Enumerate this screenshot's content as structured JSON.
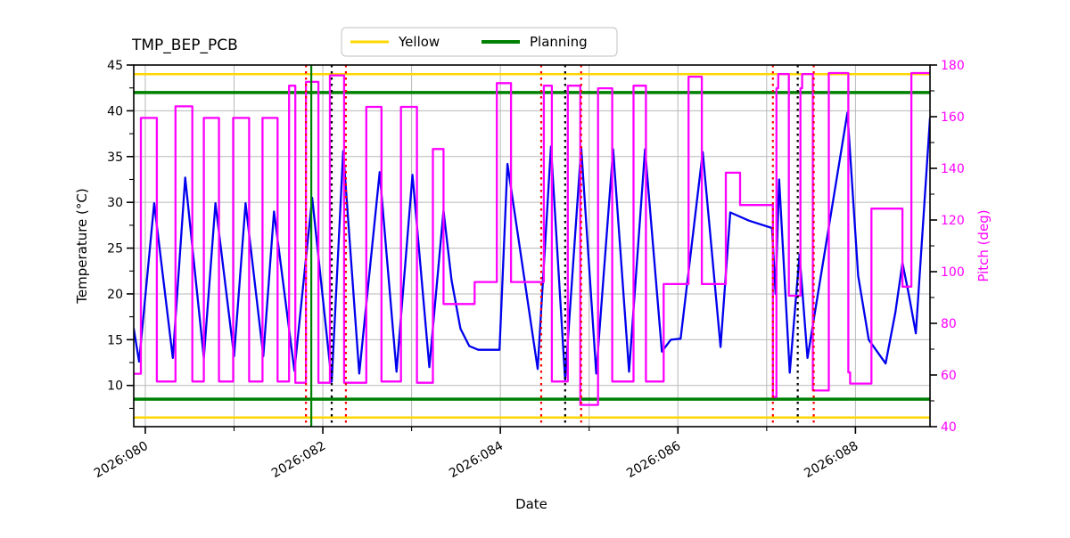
{
  "chart_data": {
    "type": "line",
    "title": "TMP_BEP_PCB",
    "xlabel": "Date",
    "ylabel": "Temperature (°C)",
    "y2label": "Pitch (deg)",
    "x_axis": {
      "xlim": [
        79.87,
        88.84
      ],
      "major_ticks": [
        80,
        82,
        84,
        86,
        88
      ],
      "major_labels": [
        "2026:080",
        "2026:082",
        "2026:084",
        "2026:086",
        "2026:088"
      ],
      "minor_ticks": [
        81,
        83,
        85,
        87
      ],
      "grid_days": [
        80,
        81,
        82,
        83,
        84,
        85,
        86,
        87,
        88
      ],
      "label_rotation_deg": 30
    },
    "y_left": {
      "lim": [
        5.5,
        45
      ],
      "ticks": [
        10,
        15,
        20,
        25,
        30,
        35,
        40,
        45
      ],
      "minor_ticks": [
        7.5,
        12.5,
        17.5,
        22.5,
        27.5,
        32.5,
        37.5,
        42.5
      ],
      "color": "#000000"
    },
    "y_right": {
      "lim": [
        40,
        180
      ],
      "ticks": [
        40,
        60,
        80,
        100,
        120,
        140,
        160,
        180
      ],
      "minor_ticks": [
        50,
        70,
        90,
        110,
        130,
        150,
        170
      ],
      "color": "#ff00ff"
    },
    "grid": true,
    "grid_color": "#b8b8b8",
    "legend": {
      "position": "top-center",
      "entries": [
        {
          "label": "Yellow",
          "color": "#ffd700"
        },
        {
          "label": "Planning",
          "color": "#008000"
        }
      ]
    },
    "series": [
      {
        "name": "temperature",
        "axis": "left",
        "color": "#0000ee",
        "points": [
          [
            79.87,
            16.2
          ],
          [
            79.93,
            12.6
          ],
          [
            80.1,
            29.9
          ],
          [
            80.31,
            13.0
          ],
          [
            80.45,
            32.7
          ],
          [
            80.66,
            13.0
          ],
          [
            80.79,
            29.9
          ],
          [
            81.0,
            13.2
          ],
          [
            81.13,
            29.9
          ],
          [
            81.33,
            13.2
          ],
          [
            81.45,
            29.0
          ],
          [
            81.68,
            11.6
          ],
          [
            81.88,
            30.5
          ],
          [
            82.1,
            10.4
          ],
          [
            82.23,
            35.6
          ],
          [
            82.41,
            11.3
          ],
          [
            82.64,
            33.3
          ],
          [
            82.83,
            11.5
          ],
          [
            83.01,
            33.0
          ],
          [
            83.2,
            12.0
          ],
          [
            83.36,
            29.1
          ],
          [
            83.45,
            21.5
          ],
          [
            83.55,
            16.2
          ],
          [
            83.65,
            14.3
          ],
          [
            83.75,
            13.9
          ],
          [
            83.99,
            13.9
          ],
          [
            84.08,
            34.2
          ],
          [
            84.42,
            11.8
          ],
          [
            84.57,
            36.1
          ],
          [
            84.73,
            10.6
          ],
          [
            84.91,
            36.0
          ],
          [
            85.08,
            11.3
          ],
          [
            85.27,
            35.8
          ],
          [
            85.45,
            11.5
          ],
          [
            85.63,
            35.8
          ],
          [
            85.82,
            13.7
          ],
          [
            85.92,
            15.0
          ],
          [
            86.03,
            15.1
          ],
          [
            86.28,
            35.5
          ],
          [
            86.48,
            14.2
          ],
          [
            86.59,
            28.9
          ],
          [
            86.8,
            28.0
          ],
          [
            87.06,
            27.2
          ],
          [
            87.1,
            20.0
          ],
          [
            87.14,
            32.5
          ],
          [
            87.26,
            11.4
          ],
          [
            87.37,
            24.3
          ],
          [
            87.46,
            13.0
          ],
          [
            87.91,
            39.8
          ],
          [
            88.03,
            22.0
          ],
          [
            88.15,
            15.0
          ],
          [
            88.34,
            12.4
          ],
          [
            88.45,
            18.0
          ],
          [
            88.53,
            23.4
          ],
          [
            88.6,
            20.0
          ],
          [
            88.68,
            15.7
          ],
          [
            88.84,
            39.2
          ]
        ]
      },
      {
        "name": "pitch",
        "axis": "right",
        "color": "#ff00ff",
        "points": [
          [
            79.87,
            60.5
          ],
          [
            79.95,
            60.5
          ],
          [
            79.95,
            159.5
          ],
          [
            80.13,
            159.5
          ],
          [
            80.13,
            57.5
          ],
          [
            80.34,
            57.5
          ],
          [
            80.34,
            164
          ],
          [
            80.53,
            164
          ],
          [
            80.53,
            57.5
          ],
          [
            80.66,
            57.5
          ],
          [
            80.66,
            159.5
          ],
          [
            80.83,
            159.5
          ],
          [
            80.83,
            57.5
          ],
          [
            80.99,
            57.5
          ],
          [
            80.99,
            159.5
          ],
          [
            81.17,
            159.5
          ],
          [
            81.17,
            57.5
          ],
          [
            81.32,
            57.5
          ],
          [
            81.32,
            159.5
          ],
          [
            81.49,
            159.5
          ],
          [
            81.49,
            57.5
          ],
          [
            81.62,
            57.5
          ],
          [
            81.62,
            172
          ],
          [
            81.69,
            172
          ],
          [
            81.69,
            57
          ],
          [
            81.81,
            57
          ],
          [
            81.81,
            173.5
          ],
          [
            81.95,
            173.5
          ],
          [
            81.95,
            57
          ],
          [
            82.08,
            57
          ],
          [
            82.08,
            176
          ],
          [
            82.24,
            176
          ],
          [
            82.24,
            57
          ],
          [
            82.49,
            57
          ],
          [
            82.49,
            163.8
          ],
          [
            82.66,
            163.8
          ],
          [
            82.66,
            57.5
          ],
          [
            82.88,
            57.5
          ],
          [
            82.88,
            163.8
          ],
          [
            83.06,
            163.8
          ],
          [
            83.06,
            57
          ],
          [
            83.24,
            57
          ],
          [
            83.24,
            147.5
          ],
          [
            83.36,
            147.5
          ],
          [
            83.36,
            87.5
          ],
          [
            83.71,
            87.5
          ],
          [
            83.71,
            96
          ],
          [
            83.96,
            96
          ],
          [
            83.96,
            173
          ],
          [
            84.12,
            173
          ],
          [
            84.12,
            96
          ],
          [
            84.49,
            96
          ],
          [
            84.49,
            172
          ],
          [
            84.58,
            172
          ],
          [
            84.58,
            57.5
          ],
          [
            84.76,
            57.5
          ],
          [
            84.76,
            172
          ],
          [
            84.9,
            172
          ],
          [
            84.9,
            48.4
          ],
          [
            85.1,
            48.4
          ],
          [
            85.1,
            171
          ],
          [
            85.26,
            171
          ],
          [
            85.26,
            57.5
          ],
          [
            85.5,
            57.5
          ],
          [
            85.5,
            172
          ],
          [
            85.64,
            172
          ],
          [
            85.64,
            57.5
          ],
          [
            85.84,
            57.5
          ],
          [
            85.84,
            95.2
          ],
          [
            86.12,
            95.2
          ],
          [
            86.12,
            175.5
          ],
          [
            86.27,
            175.5
          ],
          [
            86.27,
            95.2
          ],
          [
            86.54,
            95.2
          ],
          [
            86.54,
            138.3
          ],
          [
            86.7,
            138.3
          ],
          [
            86.7,
            125.8
          ],
          [
            87.07,
            125.8
          ],
          [
            87.07,
            51.5
          ],
          [
            87.11,
            51.5
          ],
          [
            87.11,
            171
          ],
          [
            87.13,
            171
          ],
          [
            87.13,
            176.5
          ],
          [
            87.25,
            176.5
          ],
          [
            87.25,
            90.7
          ],
          [
            87.38,
            90.7
          ],
          [
            87.38,
            171
          ],
          [
            87.4,
            171
          ],
          [
            87.4,
            176.5
          ],
          [
            87.52,
            176.5
          ],
          [
            87.52,
            54
          ],
          [
            87.7,
            54
          ],
          [
            87.7,
            176.9
          ],
          [
            87.92,
            176.9
          ],
          [
            87.92,
            61
          ],
          [
            87.94,
            61
          ],
          [
            87.94,
            56.7
          ],
          [
            88.18,
            56.7
          ],
          [
            88.18,
            124.4
          ],
          [
            88.53,
            124.4
          ],
          [
            88.53,
            94.2
          ],
          [
            88.63,
            94.2
          ],
          [
            88.63,
            176.9
          ],
          [
            88.84,
            176.9
          ]
        ]
      }
    ],
    "reference_lines": {
      "horizontal": [
        {
          "name": "yellow-high",
          "value": 44.0,
          "color": "#ffd700",
          "style": "solid",
          "width": 2.5
        },
        {
          "name": "planning-high",
          "value": 42.0,
          "color": "#008000",
          "style": "solid",
          "width": 3.5
        },
        {
          "name": "planning-low",
          "value": 8.5,
          "color": "#008000",
          "style": "solid",
          "width": 3.5
        },
        {
          "name": "yellow-low",
          "value": 6.5,
          "color": "#ffd700",
          "style": "solid",
          "width": 2.5
        }
      ],
      "vertical": [
        {
          "x": 81.81,
          "color": "#ff0000",
          "style": "dotted"
        },
        {
          "x": 81.87,
          "color": "#008000",
          "style": "solid"
        },
        {
          "x": 82.1,
          "color": "#000000",
          "style": "dotted"
        },
        {
          "x": 82.26,
          "color": "#ff0000",
          "style": "dotted"
        },
        {
          "x": 84.46,
          "color": "#ff0000",
          "style": "dotted"
        },
        {
          "x": 84.73,
          "color": "#000000",
          "style": "dotted"
        },
        {
          "x": 84.91,
          "color": "#ff0000",
          "style": "dotted"
        },
        {
          "x": 87.07,
          "color": "#ff0000",
          "style": "dotted"
        },
        {
          "x": 87.35,
          "color": "#000000",
          "style": "dotted"
        },
        {
          "x": 87.53,
          "color": "#ff0000",
          "style": "dotted"
        }
      ]
    }
  }
}
